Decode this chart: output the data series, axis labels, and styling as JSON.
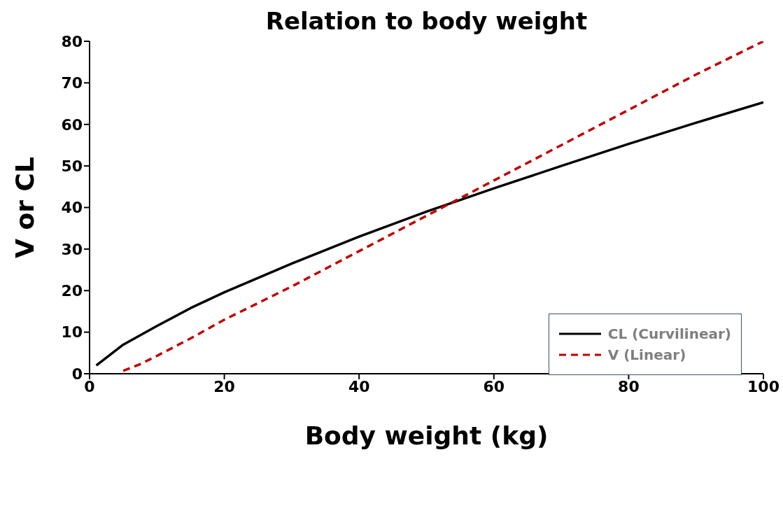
{
  "chart_data": {
    "type": "line",
    "title": "Relation to body weight",
    "xlabel": "Body weight (kg)",
    "ylabel": "V or CL",
    "xlim": [
      0,
      100
    ],
    "xticks": [
      0,
      20,
      40,
      60,
      80,
      100
    ],
    "ylim": [
      0,
      80
    ],
    "yticks": [
      0,
      10,
      20,
      30,
      40,
      50,
      60,
      70,
      80
    ],
    "grid": false,
    "legend": "bottom right",
    "marker": "none",
    "series": [
      {
        "name": "CL (Curvilinear)",
        "color": "#000000",
        "line_style": "solid",
        "x": [
          1,
          5,
          10,
          15,
          20,
          30,
          40,
          50,
          60,
          70,
          80,
          90,
          100
        ],
        "values": [
          2,
          7,
          11.5,
          15.8,
          19.6,
          26.5,
          33,
          39,
          44.6,
          50,
          55.3,
          60.4,
          65.3
        ]
      },
      {
        "name": "V (Linear)",
        "color": "#c00000",
        "line_style": "dashed",
        "x": [
          5,
          7.5,
          10,
          15,
          20,
          30,
          40,
          50,
          60,
          70,
          80,
          90,
          100
        ],
        "values": [
          0.7,
          2.3,
          4.3,
          8.5,
          13,
          21,
          29.5,
          38,
          46.5,
          55,
          63.5,
          72,
          80
        ]
      }
    ]
  }
}
